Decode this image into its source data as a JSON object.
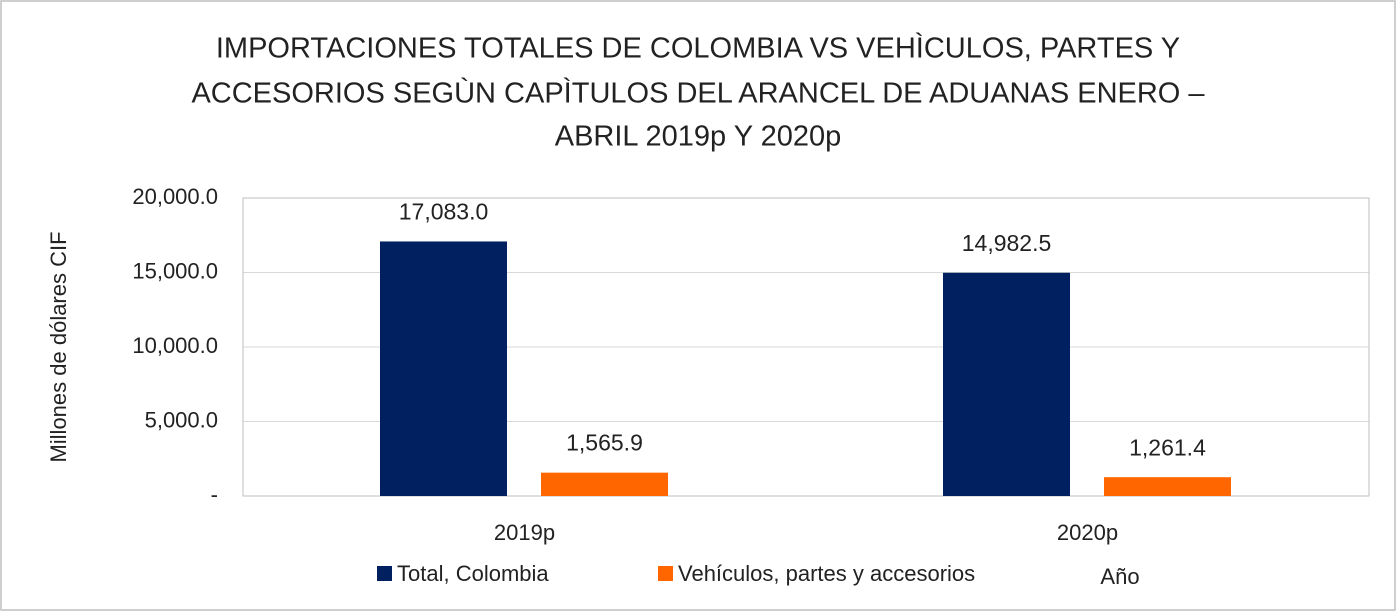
{
  "chart_data": {
    "type": "bar",
    "title": [
      "IMPORTACIONES TOTALES DE COLOMBIA VS VEHÌCULOS, PARTES Y",
      "ACCESORIOS SEGÙN  CAPÌTULOS DEL ARANCEL DE ADUANAS ENERO –",
      "ABRIL 2019p Y 2020p"
    ],
    "y_label": "Millones de dólares CIF",
    "x_label": "Año",
    "categories": [
      "2019p",
      "2020p"
    ],
    "series": [
      {
        "name": "Total, Colombia",
        "color": "#002060",
        "values": [
          17083.0,
          14982.5
        ],
        "value_labels": [
          "17,083.0",
          "14,982.5"
        ]
      },
      {
        "name": "Vehículos, partes y accesorios",
        "color": "#ff6600",
        "values": [
          1565.9,
          1261.4
        ],
        "value_labels": [
          "1,565.9",
          "1,261.4"
        ]
      }
    ],
    "ylim": [
      0,
      20000
    ],
    "yticks": [
      {
        "value": 0,
        "label": "-"
      },
      {
        "value": 5000,
        "label": "5,000.0"
      },
      {
        "value": 10000,
        "label": "10,000.0"
      },
      {
        "value": 15000,
        "label": "15,000.0"
      },
      {
        "value": 20000,
        "label": "20,000.0"
      }
    ],
    "grid": true
  }
}
